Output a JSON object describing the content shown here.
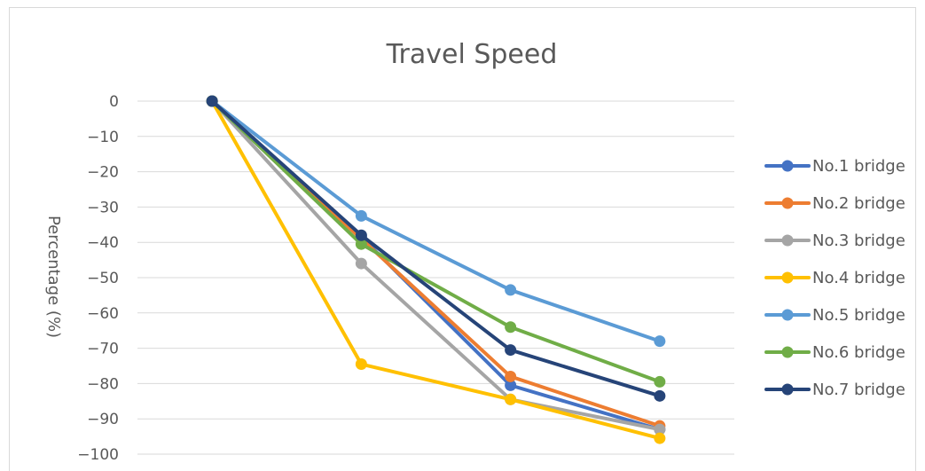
{
  "chart_data": {
    "type": "line",
    "title": "Travel Speed",
    "xlabel": "",
    "ylabel": "Percentage (%)",
    "ylim": [
      -100,
      0
    ],
    "yticks": [
      0,
      -10,
      -20,
      -30,
      -40,
      -50,
      -60,
      -70,
      -80,
      -90,
      -100
    ],
    "ytick_labels": [
      "0",
      "−10",
      "−20",
      "−30",
      "−40",
      "−50",
      "−60",
      "−70",
      "−80",
      "−90",
      "−100"
    ],
    "categories": [
      "",
      "",
      "",
      ""
    ],
    "grid": true,
    "legend": "right",
    "series": [
      {
        "name": "No.1 bridge",
        "color": "#4472c4",
        "values": [
          0,
          -38.5,
          -80.5,
          -93
        ]
      },
      {
        "name": "No.2 bridge",
        "color": "#ed7d31",
        "values": [
          0,
          -39,
          -78,
          -92
        ]
      },
      {
        "name": "No.3 bridge",
        "color": "#a5a5a5",
        "values": [
          0,
          -46,
          -84.5,
          -93
        ]
      },
      {
        "name": "No.4 bridge",
        "color": "#ffc000",
        "values": [
          0,
          -74.5,
          -84.5,
          -95.5
        ]
      },
      {
        "name": "No.5 bridge",
        "color": "#5b9bd5",
        "values": [
          0,
          -32.5,
          -53.5,
          -68
        ]
      },
      {
        "name": "No.6 bridge",
        "color": "#70ad47",
        "values": [
          0,
          -40.5,
          -64,
          -79.5
        ]
      },
      {
        "name": "No.7 bridge",
        "color": "#264478",
        "values": [
          0,
          -38,
          -70.5,
          -83.5
        ]
      }
    ]
  }
}
